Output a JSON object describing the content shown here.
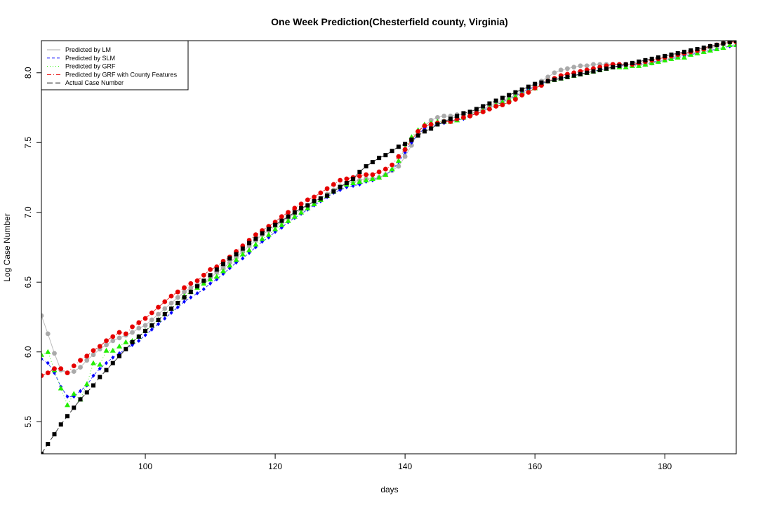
{
  "chart_data": {
    "type": "line",
    "title": "One Week Prediction(Chesterfield county, Virginia)",
    "xlabel": "days",
    "ylabel": "Log Case Number",
    "xlim": [
      84,
      191
    ],
    "ylim": [
      5.27,
      8.23
    ],
    "x_ticks": [
      "100",
      "120",
      "140",
      "160",
      "180"
    ],
    "y_ticks": [
      "5.5",
      "6.0",
      "6.5",
      "7.0",
      "7.5",
      "8.0"
    ],
    "grid": false,
    "legend_position": "top-left",
    "x": [
      84,
      85,
      86,
      87,
      88,
      89,
      90,
      91,
      92,
      93,
      94,
      95,
      96,
      97,
      98,
      99,
      100,
      101,
      102,
      103,
      104,
      105,
      106,
      107,
      108,
      109,
      110,
      111,
      112,
      113,
      114,
      115,
      116,
      117,
      118,
      119,
      120,
      121,
      122,
      123,
      124,
      125,
      126,
      127,
      128,
      129,
      130,
      131,
      132,
      133,
      134,
      135,
      136,
      137,
      138,
      139,
      140,
      141,
      142,
      143,
      144,
      145,
      146,
      147,
      148,
      149,
      150,
      151,
      152,
      153,
      154,
      155,
      156,
      157,
      158,
      159,
      160,
      161,
      162,
      163,
      164,
      165,
      166,
      167,
      168,
      169,
      170,
      171,
      172,
      173,
      174,
      175,
      176,
      177,
      178,
      179,
      180,
      181,
      182,
      183,
      184,
      185,
      186,
      187,
      188,
      189,
      190,
      191
    ],
    "series": [
      {
        "name": "Predicted by LM",
        "color": "#aaaaaa",
        "marker": "circle",
        "values": [
          6.26,
          6.13,
          5.99,
          5.87,
          5.85,
          5.86,
          5.89,
          5.94,
          5.98,
          6.02,
          6.05,
          6.08,
          6.1,
          6.12,
          6.14,
          6.17,
          6.19,
          6.23,
          6.27,
          6.31,
          6.35,
          6.39,
          6.43,
          6.46,
          6.48,
          6.5,
          6.53,
          6.57,
          6.6,
          6.64,
          6.68,
          6.72,
          6.76,
          6.8,
          6.84,
          6.87,
          6.9,
          6.93,
          6.96,
          6.99,
          7.02,
          7.05,
          7.08,
          7.1,
          7.13,
          7.16,
          7.19,
          7.21,
          7.22,
          7.23,
          7.24,
          7.24,
          7.25,
          7.27,
          7.3,
          7.33,
          7.4,
          7.48,
          7.58,
          7.62,
          7.66,
          7.68,
          7.69,
          7.69,
          7.7,
          7.7,
          7.71,
          7.72,
          7.74,
          7.76,
          7.78,
          7.8,
          7.82,
          7.84,
          7.86,
          7.88,
          7.91,
          7.94,
          7.97,
          8.0,
          8.02,
          8.03,
          8.04,
          8.05,
          8.05,
          8.06,
          8.06,
          8.06,
          8.06,
          8.06,
          8.06,
          8.06,
          8.06,
          8.06,
          8.07,
          8.08,
          8.09,
          8.11,
          8.12,
          8.13,
          8.14,
          8.15,
          8.16,
          8.18,
          8.19,
          8.21,
          8.22,
          8.22
        ]
      },
      {
        "name": "Predicted by SLM",
        "color": "#0000ff",
        "marker": "diamond",
        "values": [
          5.95,
          5.92,
          5.85,
          5.75,
          5.68,
          5.68,
          5.72,
          5.76,
          5.83,
          5.88,
          5.92,
          5.96,
          5.99,
          6.02,
          6.05,
          6.08,
          6.12,
          6.16,
          6.2,
          6.24,
          6.28,
          6.32,
          6.36,
          6.39,
          6.42,
          6.45,
          6.49,
          6.52,
          6.56,
          6.6,
          6.64,
          6.67,
          6.71,
          6.75,
          6.79,
          6.82,
          6.86,
          6.89,
          6.93,
          6.96,
          6.99,
          7.02,
          7.05,
          7.08,
          7.11,
          7.14,
          7.16,
          7.18,
          7.19,
          7.2,
          7.22,
          7.23,
          7.25,
          7.27,
          7.3,
          7.36,
          7.43,
          7.5,
          7.56,
          7.6,
          7.62,
          7.63,
          7.64,
          7.65,
          7.66,
          7.67,
          7.69,
          7.71,
          7.73,
          7.75,
          7.77,
          7.79,
          7.81,
          7.83,
          7.86,
          7.88,
          7.9,
          7.92,
          7.94,
          7.95,
          7.96,
          7.97,
          7.98,
          7.99,
          8.0,
          8.01,
          8.02,
          8.03,
          8.04,
          8.05,
          8.05,
          8.06,
          8.06,
          8.07,
          8.08,
          8.08,
          8.09,
          8.1,
          8.11,
          8.12,
          8.13,
          8.14,
          8.15,
          8.16,
          8.17,
          8.18,
          8.19,
          8.2
        ]
      },
      {
        "name": "Predicted by GRF",
        "color": "#22ee00",
        "marker": "triangle",
        "values": [
          5.98,
          6.0,
          5.87,
          5.74,
          5.62,
          5.7,
          5.66,
          5.77,
          5.92,
          5.91,
          6.01,
          6.01,
          6.04,
          6.07,
          6.08,
          6.11,
          6.15,
          6.19,
          6.23,
          6.27,
          6.31,
          6.35,
          6.4,
          6.43,
          6.46,
          6.49,
          6.52,
          6.54,
          6.58,
          6.62,
          6.66,
          6.7,
          6.73,
          6.77,
          6.81,
          6.84,
          6.88,
          6.91,
          6.94,
          6.97,
          7.0,
          7.03,
          7.06,
          7.09,
          7.12,
          7.15,
          7.18,
          7.2,
          7.21,
          7.22,
          7.23,
          7.24,
          7.25,
          7.27,
          7.31,
          7.37,
          7.46,
          7.54,
          7.59,
          7.63,
          7.64,
          7.65,
          7.65,
          7.65,
          7.66,
          7.68,
          7.7,
          7.72,
          7.73,
          7.75,
          7.77,
          7.79,
          7.81,
          7.83,
          7.85,
          7.87,
          7.89,
          7.92,
          7.94,
          7.95,
          7.96,
          7.97,
          7.98,
          7.99,
          8.0,
          8.01,
          8.02,
          8.03,
          8.04,
          8.04,
          8.04,
          8.05,
          8.05,
          8.06,
          8.07,
          8.08,
          8.09,
          8.1,
          8.11,
          8.11,
          8.13,
          8.14,
          8.15,
          8.16,
          8.17,
          8.18,
          8.2,
          8.2
        ]
      },
      {
        "name": "Predicted by GRF with County Features",
        "color": "#e60000",
        "marker": "circle",
        "values": [
          5.83,
          5.85,
          5.88,
          5.88,
          5.85,
          5.9,
          5.94,
          5.97,
          6.01,
          6.04,
          6.08,
          6.11,
          6.14,
          6.13,
          6.18,
          6.21,
          6.24,
          6.28,
          6.32,
          6.36,
          6.4,
          6.43,
          6.46,
          6.49,
          6.51,
          6.55,
          6.59,
          6.61,
          6.65,
          6.68,
          6.72,
          6.76,
          6.8,
          6.84,
          6.87,
          6.9,
          6.93,
          6.97,
          7.0,
          7.03,
          7.06,
          7.09,
          7.11,
          7.14,
          7.17,
          7.2,
          7.23,
          7.24,
          7.25,
          7.26,
          7.27,
          7.27,
          7.29,
          7.31,
          7.34,
          7.4,
          7.45,
          7.52,
          7.58,
          7.62,
          7.63,
          7.64,
          7.65,
          7.65,
          7.67,
          7.68,
          7.69,
          7.71,
          7.72,
          7.74,
          7.76,
          7.77,
          7.79,
          7.81,
          7.84,
          7.86,
          7.89,
          7.91,
          7.94,
          7.96,
          7.98,
          7.99,
          8.0,
          8.01,
          8.02,
          8.03,
          8.04,
          8.05,
          8.06,
          8.06,
          8.06,
          8.06,
          8.07,
          8.08,
          8.09,
          8.1,
          8.11,
          8.12,
          8.13,
          8.14,
          8.15,
          8.16,
          8.17,
          8.19,
          8.2,
          8.21,
          8.22,
          8.22
        ]
      },
      {
        "name": "Actual Case Number",
        "color": "#000000",
        "marker": "square",
        "values": [
          5.27,
          5.34,
          5.41,
          5.48,
          5.54,
          5.6,
          5.66,
          5.71,
          5.76,
          5.82,
          5.87,
          5.92,
          5.97,
          6.02,
          6.07,
          6.11,
          6.15,
          6.19,
          6.23,
          6.27,
          6.31,
          6.35,
          6.39,
          6.43,
          6.47,
          6.51,
          6.55,
          6.59,
          6.63,
          6.67,
          6.7,
          6.74,
          6.78,
          6.81,
          6.85,
          6.88,
          6.91,
          6.94,
          6.97,
          7.0,
          7.03,
          7.05,
          7.08,
          7.1,
          7.12,
          7.15,
          7.18,
          7.21,
          7.24,
          7.29,
          7.33,
          7.36,
          7.39,
          7.41,
          7.44,
          7.47,
          7.49,
          7.52,
          7.55,
          7.58,
          7.6,
          7.63,
          7.65,
          7.67,
          7.69,
          7.71,
          7.72,
          7.74,
          7.76,
          7.78,
          7.8,
          7.82,
          7.84,
          7.86,
          7.88,
          7.9,
          7.92,
          7.93,
          7.94,
          7.95,
          7.96,
          7.97,
          7.98,
          7.99,
          8.0,
          8.01,
          8.02,
          8.03,
          8.04,
          8.05,
          8.06,
          8.07,
          8.08,
          8.09,
          8.1,
          8.11,
          8.12,
          8.13,
          8.14,
          8.15,
          8.16,
          8.17,
          8.18,
          8.19,
          8.2,
          8.21,
          8.22,
          8.23
        ]
      }
    ]
  }
}
